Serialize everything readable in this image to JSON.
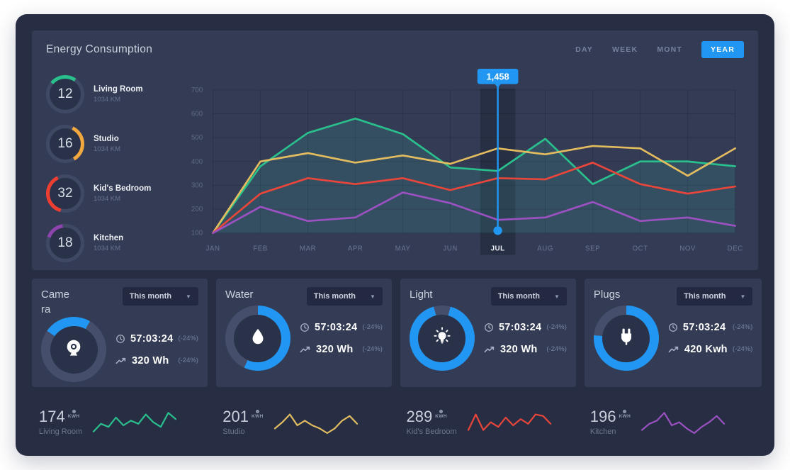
{
  "header": {
    "title": "Energy Consumption",
    "tabs": [
      {
        "label": "DAY",
        "active": false
      },
      {
        "label": "WEEK",
        "active": false
      },
      {
        "label": "MONT",
        "active": false
      },
      {
        "label": "YEAR",
        "active": true
      }
    ]
  },
  "gauges": [
    {
      "value": "12",
      "label": "Living Room",
      "sub": "1034 KM",
      "color": "#29c08d",
      "arc_start": 310,
      "arc_span": 85
    },
    {
      "value": "16",
      "label": "Studio",
      "sub": "1034 KM",
      "color": "#f2a73f",
      "arc_start": 25,
      "arc_span": 125
    },
    {
      "value": "32",
      "label": "Kid's Bedroom",
      "sub": "1034 KM",
      "color": "#ee3e32",
      "arc_start": 195,
      "arc_span": 140
    },
    {
      "value": "18",
      "label": "Kitchen",
      "sub": "1034 KM",
      "color": "#8e44ad",
      "arc_start": 290,
      "arc_span": 62
    }
  ],
  "chart_data": {
    "type": "line",
    "x": [
      "JAN",
      "FEB",
      "MAR",
      "APR",
      "MAY",
      "JUN",
      "JUL",
      "AUG",
      "SEP",
      "OCT",
      "NOV",
      "DEC"
    ],
    "ylim": [
      100,
      700
    ],
    "yticks": [
      100,
      200,
      300,
      400,
      500,
      600,
      700
    ],
    "grid": true,
    "legend": "none",
    "series": [
      {
        "name": "Living Room",
        "color": "#29c08d",
        "area": true,
        "values": [
          100,
          380,
          520,
          580,
          515,
          375,
          360,
          495,
          305,
          400,
          400,
          380
        ]
      },
      {
        "name": "Studio",
        "color": "#e3bc60",
        "area": false,
        "values": [
          100,
          400,
          435,
          395,
          425,
          390,
          455,
          430,
          465,
          455,
          340,
          455
        ]
      },
      {
        "name": "Kid's Bedroom",
        "color": "#e8463a",
        "area": false,
        "values": [
          100,
          265,
          330,
          305,
          330,
          280,
          330,
          325,
          395,
          305,
          265,
          295
        ]
      },
      {
        "name": "Kitchen",
        "color": "#9b51c1",
        "area": false,
        "values": [
          100,
          210,
          150,
          165,
          270,
          225,
          155,
          165,
          230,
          150,
          165,
          130
        ]
      }
    ],
    "highlight": {
      "x": "JUL",
      "tooltip": "1,458",
      "marker_value": 110
    }
  },
  "cards": [
    {
      "title": "Camera",
      "icon": "camera",
      "dropdown_value": "This month",
      "ring": {
        "start": 305,
        "span": 85
      },
      "time": "57:03:24",
      "time_delta": "(-24%)",
      "usage": "320 Wh",
      "usage_delta": "(-24%)"
    },
    {
      "title": "Water",
      "icon": "water-drop",
      "dropdown_value": "This month",
      "ring": {
        "start": 0,
        "span": 205
      },
      "time": "57:03:24",
      "time_delta": "(-24%)",
      "usage": "320 Wh",
      "usage_delta": "(-24%)"
    },
    {
      "title": "Light",
      "icon": "light-bulb",
      "dropdown_value": "This month",
      "ring": {
        "start": 15,
        "span": 330
      },
      "time": "57:03:24",
      "time_delta": "(-24%)",
      "usage": "320 Wh",
      "usage_delta": "(-24%)"
    },
    {
      "title": "Plugs",
      "icon": "plug",
      "dropdown_value": "This month",
      "ring": {
        "start": 0,
        "span": 275
      },
      "time": "57:03:24",
      "time_delta": "(-24%)",
      "usage": "420 Kwh",
      "usage_delta": "(-24%)"
    }
  ],
  "sparklines": [
    {
      "value": "174",
      "unit": "KWH",
      "label": "Living Room",
      "color": "#29c08d",
      "points": [
        14,
        9,
        11,
        5,
        10,
        7,
        9,
        3,
        8,
        11,
        2,
        6
      ]
    },
    {
      "value": "201",
      "unit": "KWH",
      "label": "Studio",
      "color": "#e3bc60",
      "points": [
        12,
        8,
        3,
        10,
        7,
        10,
        12,
        15,
        12,
        7,
        4,
        9
      ]
    },
    {
      "value": "289",
      "unit": "KWH",
      "label": "Kid's Bedroom",
      "color": "#e8463a",
      "points": [
        13,
        3,
        13,
        8,
        11,
        5,
        10,
        6,
        9,
        3,
        4,
        9
      ]
    },
    {
      "value": "196",
      "unit": "KWH",
      "label": "Kitchen",
      "color": "#9b51c1",
      "points": [
        13,
        9,
        7,
        2,
        10,
        8,
        12,
        15,
        11,
        8,
        4,
        9
      ]
    }
  ],
  "colors": {
    "accent_blue": "#2196f3",
    "panel": "#343c55",
    "panel_dark": "#272e44",
    "ring_base": "#454f6c",
    "gauge_ring_base": "#3f4963"
  }
}
